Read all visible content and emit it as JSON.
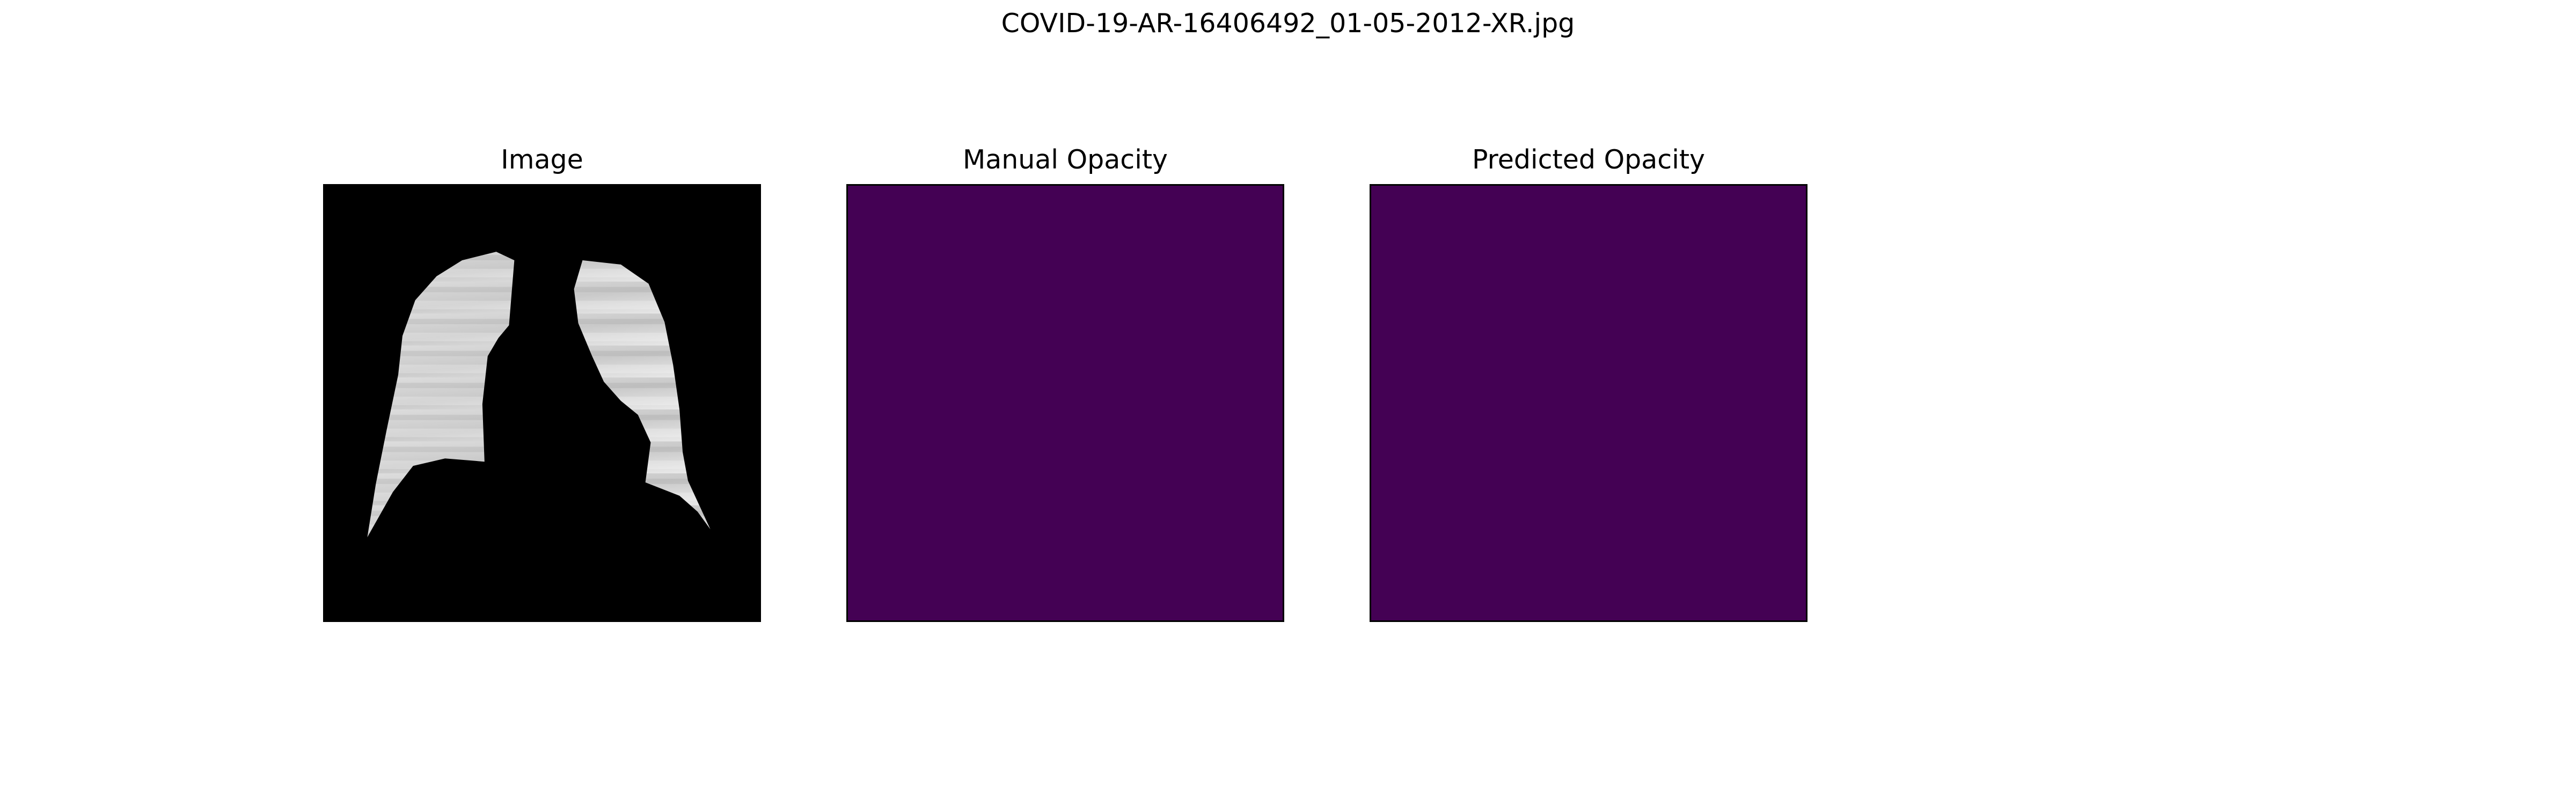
{
  "figure": {
    "title": "COVID-19-AR-16406492_01-05-2012-XR.jpg"
  },
  "panels": [
    {
      "title": "Image"
    },
    {
      "title": "Manual Opacity",
      "fill_color": "#440154"
    },
    {
      "title": "Predicted Opacity",
      "fill_color": "#440154"
    }
  ]
}
